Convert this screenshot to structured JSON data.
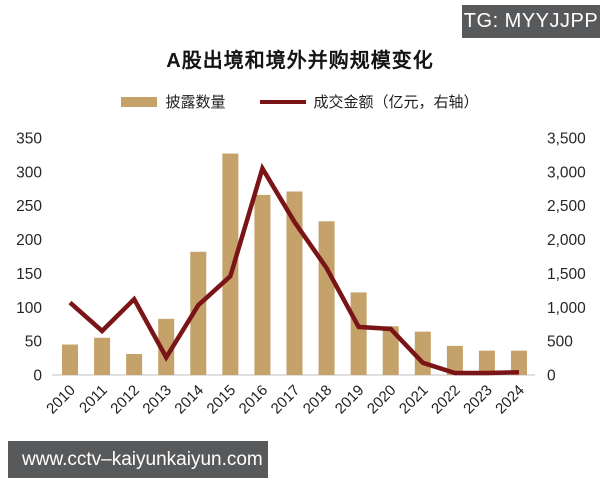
{
  "overlays": {
    "tg_badge": "TG: MYYJJPP",
    "watermark_url": "www.cctv–kaiyunkaiyun.com",
    "overlay_bg_color": "#58595B"
  },
  "chart_data": {
    "type": "bar+line",
    "title": "A股出境和境外并购规模变化",
    "categories": [
      "2010",
      "2011",
      "2012",
      "2013",
      "2014",
      "2015",
      "2016",
      "2017",
      "2018",
      "2019",
      "2020",
      "2021",
      "2022",
      "2023",
      "2024"
    ],
    "series": [
      {
        "name": "披露数量",
        "type": "bar",
        "axis": "left",
        "color": "#C6A26B",
        "values": [
          45,
          55,
          31,
          83,
          182,
          327,
          266,
          271,
          227,
          122,
          72,
          64,
          43,
          36,
          36
        ]
      },
      {
        "name": "成交金额（亿元，右轴）",
        "type": "line",
        "axis": "right",
        "color": "#7A1416",
        "values": [
          1070,
          650,
          1120,
          260,
          1030,
          1460,
          3050,
          2260,
          1580,
          710,
          680,
          180,
          30,
          30,
          40
        ]
      }
    ],
    "left_axis": {
      "min": 0,
      "max": 350,
      "tick_step": 50,
      "tick_labels": [
        "0",
        "50",
        "100",
        "150",
        "200",
        "250",
        "300",
        "350"
      ]
    },
    "right_axis": {
      "min": 0,
      "max": 3500,
      "tick_step": 500,
      "tick_labels": [
        "0",
        "500",
        "1,000",
        "1,500",
        "2,000",
        "2,500",
        "3,000",
        "3,500"
      ]
    },
    "grid": false,
    "legend_position": "top",
    "axis_line_color": "#D6D6D6"
  }
}
